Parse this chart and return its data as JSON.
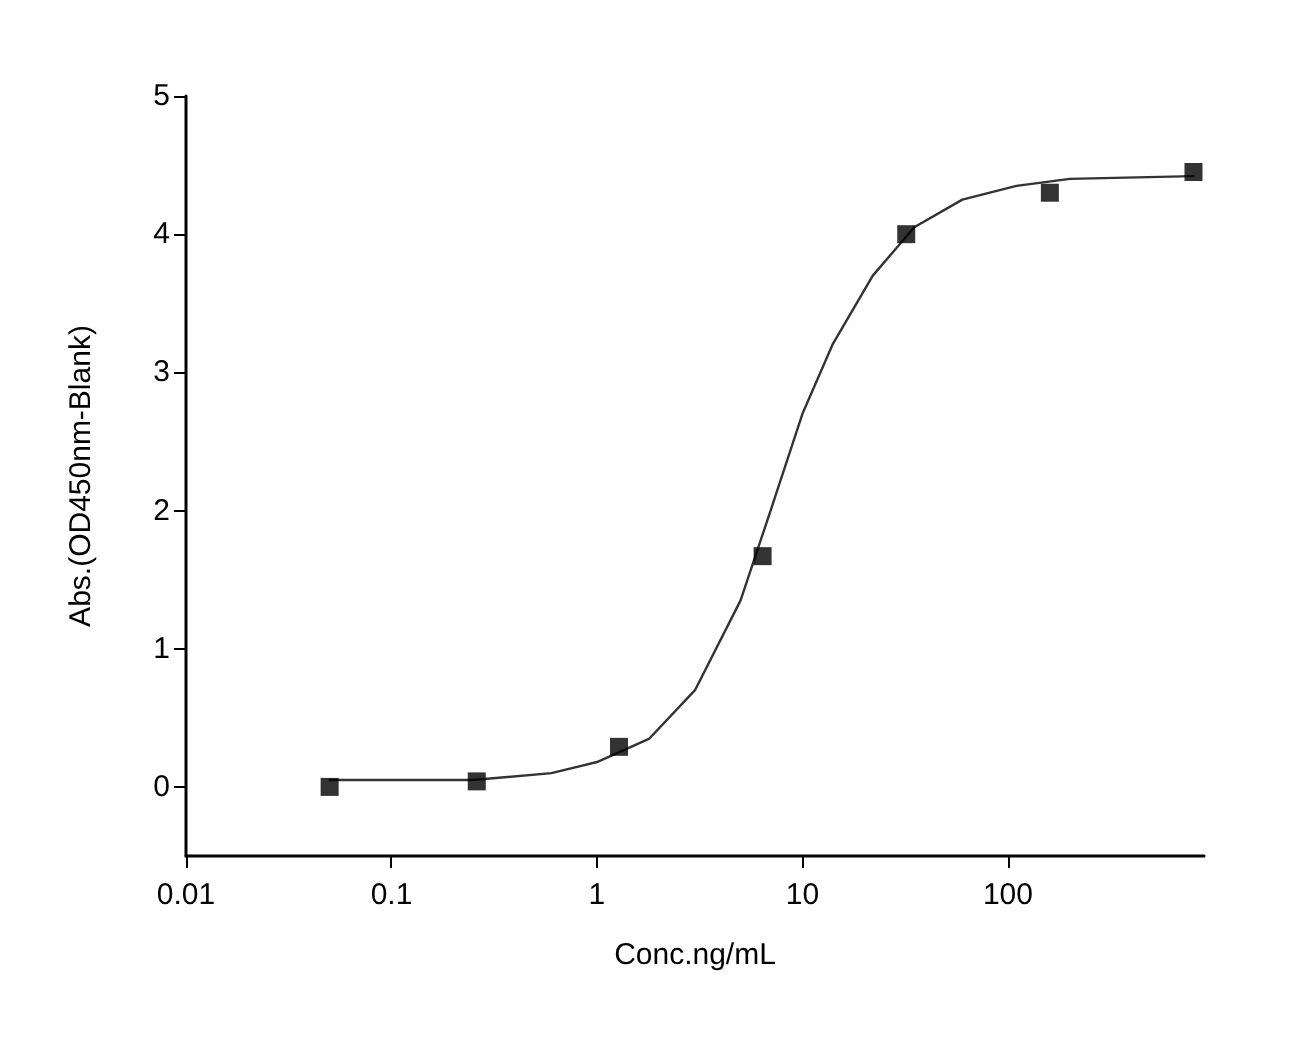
{
  "chart_data": {
    "type": "scatter",
    "xlabel": "Conc.ng/mL",
    "ylabel": "Abs.(OD450nm-Blank)",
    "log": "x",
    "xlim": [
      0.01,
      900
    ],
    "xticks": [
      0.01,
      0.1,
      1,
      10,
      100
    ],
    "ylim": [
      -0.5,
      5
    ],
    "yticks": [
      0,
      1,
      2,
      3,
      4,
      5
    ],
    "grid": false,
    "series": [
      {
        "marker": "square",
        "color": "#000000",
        "x": [
          0.05,
          0.26,
          1.28,
          6.4,
          32,
          160,
          800
        ],
        "values": [
          0,
          0.04,
          0.29,
          1.67,
          4.0,
          4.3,
          4.45
        ]
      },
      {
        "type": "line",
        "marker": "none",
        "line_style": "solid",
        "color": "#333333",
        "x": [
          0.05,
          0.25,
          0.6,
          1,
          1.8,
          3,
          5,
          7,
          10,
          14,
          22,
          35,
          60,
          110,
          200,
          800
        ],
        "values": [
          0.05,
          0.05,
          0.1,
          0.18,
          0.35,
          0.7,
          1.35,
          2.0,
          2.7,
          3.2,
          3.7,
          4.05,
          4.25,
          4.35,
          4.4,
          4.42
        ]
      }
    ]
  }
}
